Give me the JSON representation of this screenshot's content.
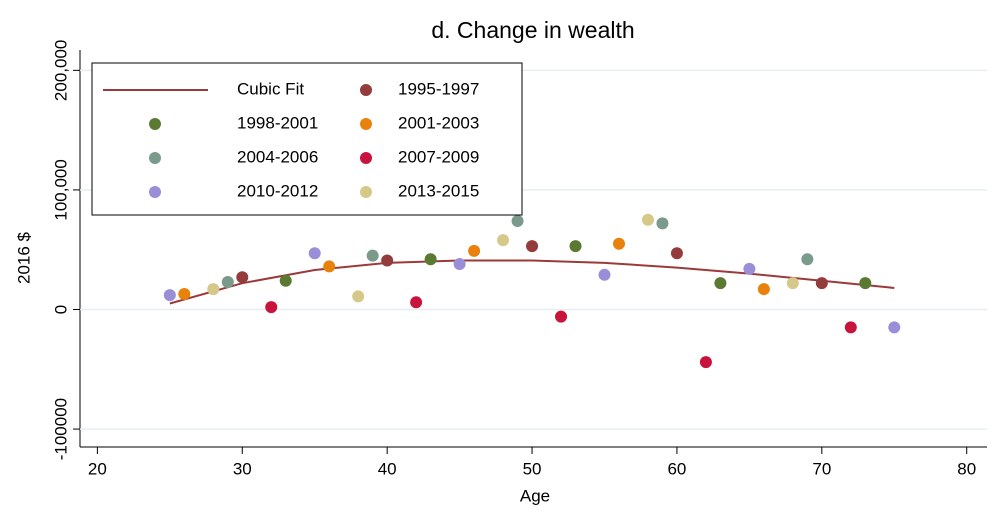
{
  "chart_data": {
    "type": "scatter",
    "title": "d. Change in wealth",
    "x_label": "Age",
    "y_label": "2016 $",
    "xlim": [
      18.8,
      81.4
    ],
    "ylim": [
      -115000,
      217000
    ],
    "xticks": [
      20,
      30,
      40,
      50,
      60,
      70,
      80
    ],
    "yticks": [
      {
        "value": -100000,
        "label": "-100000"
      },
      0,
      {
        "value": 100000,
        "label": "100,000"
      },
      {
        "value": 200000,
        "label": "200,000"
      }
    ],
    "grid": true,
    "legend": "top-left",
    "series": [
      {
        "name": "Cubic Fit",
        "type": "line",
        "color": "#9b3a3a",
        "x": [
          25,
          30,
          35,
          40,
          45,
          50,
          55,
          60,
          65,
          70,
          75
        ],
        "values": [
          5000,
          22000,
          33000,
          39000,
          41000,
          41000,
          39000,
          35000,
          30000,
          24000,
          18000
        ]
      },
      {
        "name": "1995-1997",
        "color": "#943c3c",
        "x": [
          30,
          40,
          50,
          60,
          70
        ],
        "values": [
          27000,
          41000,
          53000,
          47000,
          22000
        ]
      },
      {
        "name": "1998-2001",
        "color": "#5a7a32",
        "x": [
          33,
          43,
          53,
          63,
          73
        ],
        "values": [
          24000,
          42000,
          53000,
          22000,
          22000
        ]
      },
      {
        "name": "2001-2003",
        "color": "#e8820c",
        "x": [
          26,
          36,
          46,
          56,
          66
        ],
        "values": [
          13000,
          36000,
          49000,
          55000,
          17000
        ]
      },
      {
        "name": "2004-2006",
        "color": "#7a9a8c",
        "x": [
          29,
          39,
          49,
          59,
          69
        ],
        "values": [
          23000,
          45000,
          74000,
          72000,
          42000
        ]
      },
      {
        "name": "2007-2009",
        "color": "#c8143c",
        "x": [
          32,
          42,
          52,
          62,
          72
        ],
        "values": [
          2000,
          6000,
          -6000,
          -44000,
          -15000
        ]
      },
      {
        "name": "2010-2012",
        "color": "#9a8ed8",
        "x": [
          25,
          35,
          45,
          55,
          65,
          75
        ],
        "values": [
          12000,
          47000,
          38000,
          29000,
          34000,
          -15000
        ]
      },
      {
        "name": "2013-2015",
        "color": "#d6c888",
        "x": [
          28,
          38,
          48,
          58,
          68
        ],
        "values": [
          17000,
          11000,
          58000,
          75000,
          22000
        ]
      }
    ]
  }
}
